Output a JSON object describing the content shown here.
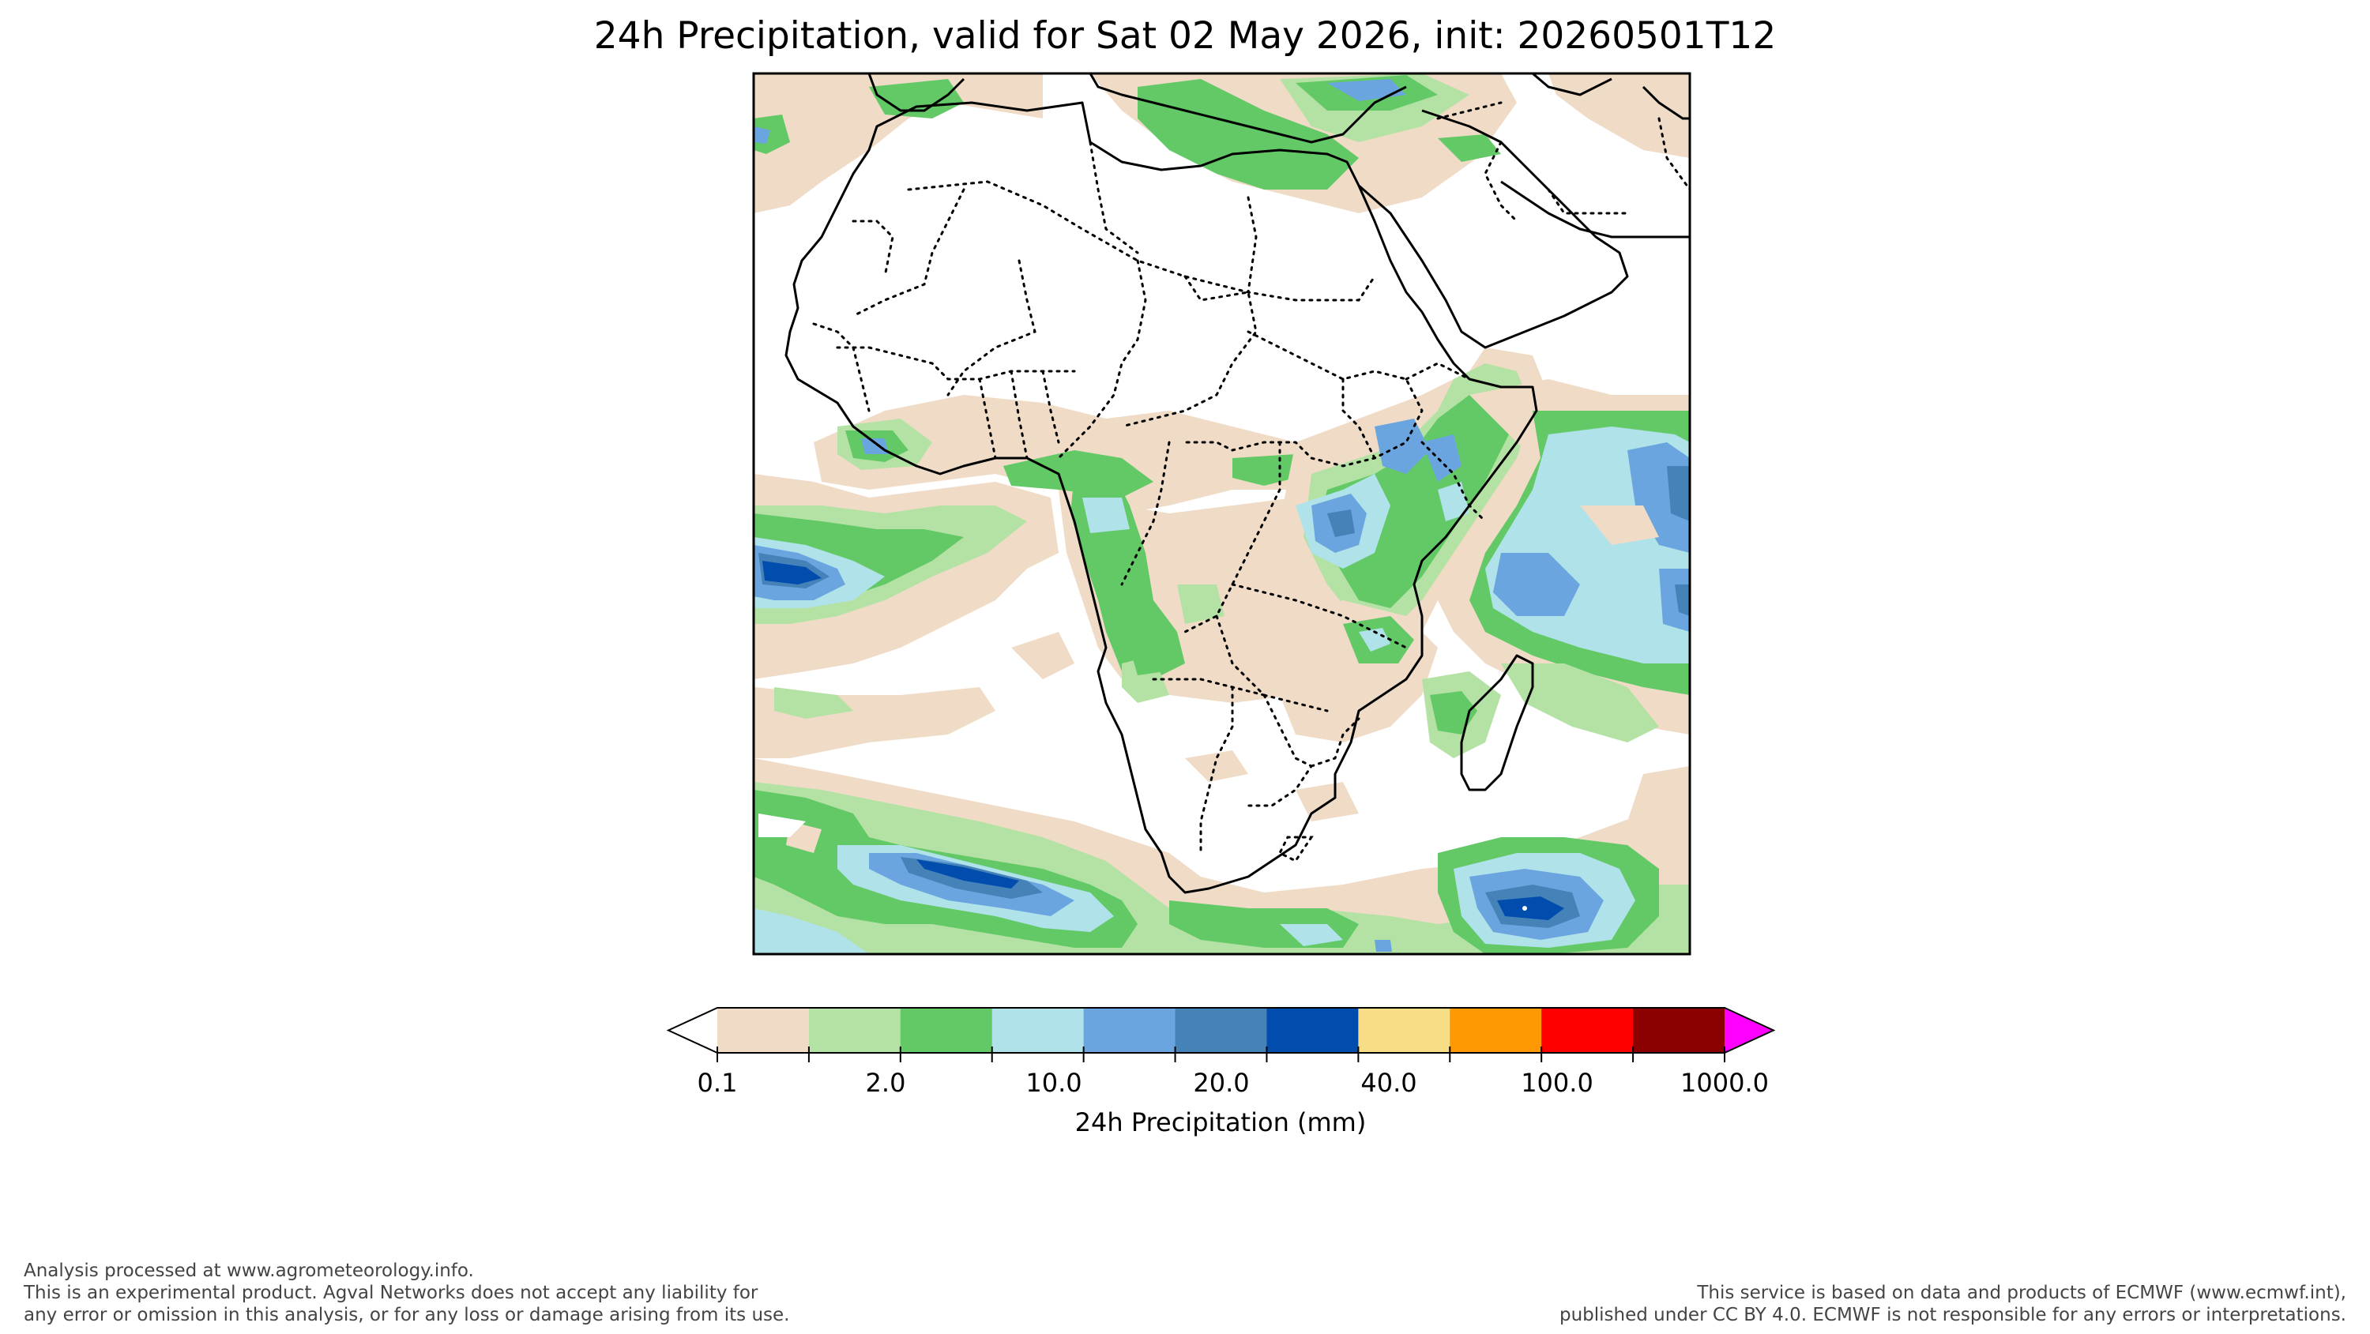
{
  "title": "24h Precipitation, valid for Sat 02 May 2026, init: 20260501T12",
  "colorbar": {
    "label": "24h Precipitation (mm)",
    "tick_labels": [
      "0.1",
      "2.0",
      "10.0",
      "20.0",
      "40.0",
      "100.0",
      "1000.0"
    ],
    "colors": [
      "#ffffff",
      "#efdbc6",
      "#b4e2a5",
      "#63c966",
      "#b0e2ea",
      "#6aa5df",
      "#4582b7",
      "#014dae",
      "#f7de86",
      "#fe9803",
      "#fe0000",
      "#8b0000",
      "#ff00ff"
    ],
    "extend": "both"
  },
  "map": {
    "region": "Africa",
    "features": [
      "coastlines",
      "country-borders-dotted"
    ],
    "palette": {
      "land": "#ffffff",
      "light": "#efdbc6",
      "pale_green": "#b4e2a5",
      "green": "#63c966",
      "cyan": "#b0e2ea",
      "blue": "#6aa5df",
      "steel": "#4582b7",
      "navy": "#014dae",
      "coast": "#000000"
    }
  },
  "footer": {
    "left_lines": [
      "Analysis processed at www.agrometeorology.info.",
      "This is an experimental product. Agval Networks does not accept any liability for",
      "any error or omission in this analysis, or for any loss or damage arising from its use."
    ],
    "right_lines": [
      "This service is based on data and products of ECMWF (www.ecmwf.int),",
      "published under CC BY 4.0. ECMWF is not responsible for any errors or interpretations."
    ]
  }
}
